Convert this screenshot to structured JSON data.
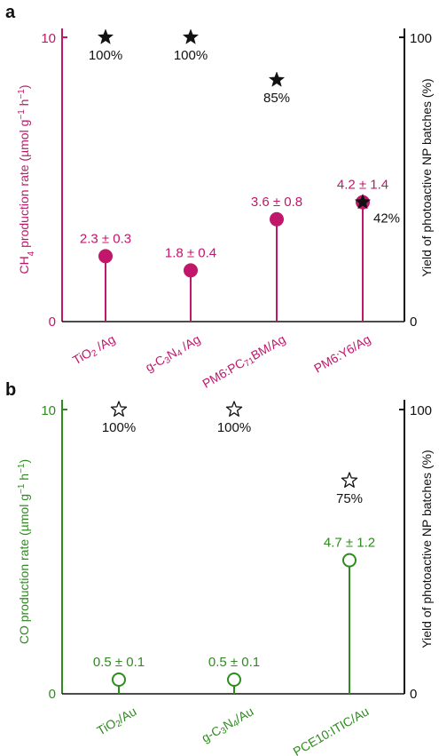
{
  "colors": {
    "magenta": "#C0176B",
    "green": "#2E8B1E",
    "black": "#111111"
  },
  "chart_data": [
    {
      "panel_label": "a",
      "type": "lollipop",
      "categories": [
        "TiO2 /Ag",
        "g-C3N4 /Ag",
        "PM6:PC71BM/Ag",
        "PM6:Y6/Ag"
      ],
      "category_labels_rich": [
        [
          [
            "TiO",
            ""
          ],
          [
            "2",
            "sub"
          ],
          [
            " /Ag",
            ""
          ]
        ],
        [
          [
            "g-C",
            ""
          ],
          [
            "3",
            "sub"
          ],
          [
            "N",
            ""
          ],
          [
            "4",
            "sub"
          ],
          [
            " /Ag",
            ""
          ]
        ],
        [
          [
            "PM6:PC",
            ""
          ],
          [
            "71",
            "sub"
          ],
          [
            "BM/Ag",
            ""
          ]
        ],
        [
          [
            "PM6:Y6/Ag",
            ""
          ]
        ]
      ],
      "ylabel_left": "CH4 production rate (µmol g-1 h-1)",
      "ylabel_left_rich": [
        [
          "CH",
          ""
        ],
        [
          "4",
          "sub"
        ],
        [
          " production rate (µmol g",
          ""
        ],
        [
          "−1",
          "sup"
        ],
        [
          " h",
          ""
        ],
        [
          "−1",
          "sup"
        ],
        [
          ")",
          ""
        ]
      ],
      "ylabel_right": "Yield of photoactive NP batches (%)",
      "ylim_left": [
        0,
        10
      ],
      "ylim_right": [
        0,
        100
      ],
      "left_ticks": [
        "0",
        "10"
      ],
      "right_ticks": [
        "0",
        "100"
      ],
      "series": [
        {
          "name": "rate",
          "marker": "filled-circle",
          "values": [
            2.3,
            1.8,
            3.6,
            4.2
          ],
          "labels": [
            "2.3 ± 0.3",
            "1.8 ± 0.4",
            "3.6 ± 0.8",
            "4.2 ± 1.4"
          ]
        },
        {
          "name": "yield",
          "marker": "filled-star",
          "values": [
            100,
            100,
            85,
            42
          ],
          "labels": [
            "100%",
            "100%",
            "85%",
            "42%"
          ]
        }
      ]
    },
    {
      "panel_label": "b",
      "type": "lollipop",
      "categories": [
        "TiO2/Au",
        "g-C3N4/Au",
        "PCE10:ITIC/Au"
      ],
      "category_labels_rich": [
        [
          [
            "TiO",
            ""
          ],
          [
            "2",
            "sub"
          ],
          [
            "/Au",
            ""
          ]
        ],
        [
          [
            "g-C",
            ""
          ],
          [
            "3",
            "sub"
          ],
          [
            "N",
            ""
          ],
          [
            "4",
            "sub"
          ],
          [
            "/Au",
            ""
          ]
        ],
        [
          [
            "PCE10:ITIC/Au",
            ""
          ]
        ]
      ],
      "ylabel_left": "CO production rate (µmol g-1 h-1)",
      "ylabel_left_rich": [
        [
          "CO production rate (µmol g",
          ""
        ],
        [
          "−1",
          "sup"
        ],
        [
          " h",
          ""
        ],
        [
          "−1",
          "sup"
        ],
        [
          ")",
          ""
        ]
      ],
      "ylabel_right": "Yield of photoactive NP batches (%)",
      "ylim_left": [
        0,
        10
      ],
      "ylim_right": [
        0,
        100
      ],
      "left_ticks": [
        "0",
        "10"
      ],
      "right_ticks": [
        "0",
        "100"
      ],
      "series": [
        {
          "name": "rate",
          "marker": "open-circle",
          "values": [
            0.5,
            0.5,
            4.7
          ],
          "labels": [
            "0.5 ± 0.1",
            "0.5 ± 0.1",
            "4.7 ± 1.2"
          ]
        },
        {
          "name": "yield",
          "marker": "open-star",
          "values": [
            100,
            100,
            75
          ],
          "labels": [
            "100%",
            "100%",
            "75%"
          ]
        }
      ]
    }
  ]
}
